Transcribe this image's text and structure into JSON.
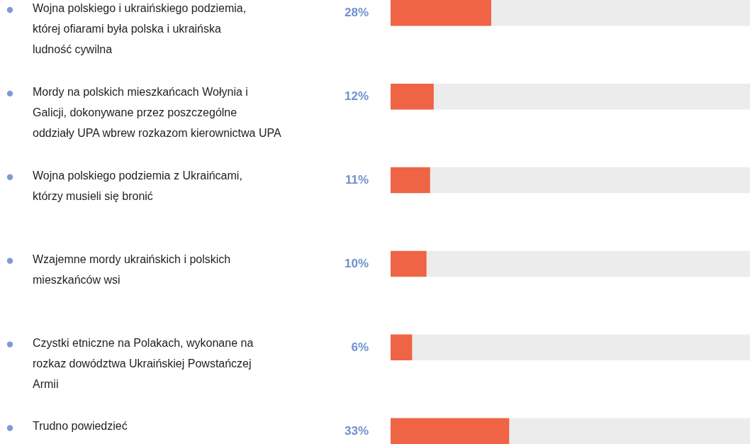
{
  "chart_data": {
    "type": "bar",
    "orientation": "horizontal",
    "categories": [
      "Wojna polskiego i ukraińskiego podziemia, której ofiarami była polska i ukraińska ludność cywilna",
      "Mordy na polskich mieszkańcach Wołynia i Galicji, dokonywane przez poszczególne oddziały UPA wbrew rozkazom kierownictwa UPA",
      "Wojna polskiego podziemia z Ukraińcami, którzy musieli się bronić",
      "Wzajemne mordy ukraińskich i polskich mieszkańców wsi",
      "Czystki etniczne na Polakach, wykonane na rozkaz dowództwa Ukraińskiej Powstańczej Armii",
      "Trudno powiedzieć"
    ],
    "values": [
      28,
      12,
      11,
      10,
      6,
      33
    ],
    "value_labels": [
      "28%",
      "12%",
      "11%",
      "10%",
      "6%",
      "33%"
    ],
    "color": "#ee6444",
    "xlim": [
      0,
      100
    ],
    "tick_labels": false
  }
}
